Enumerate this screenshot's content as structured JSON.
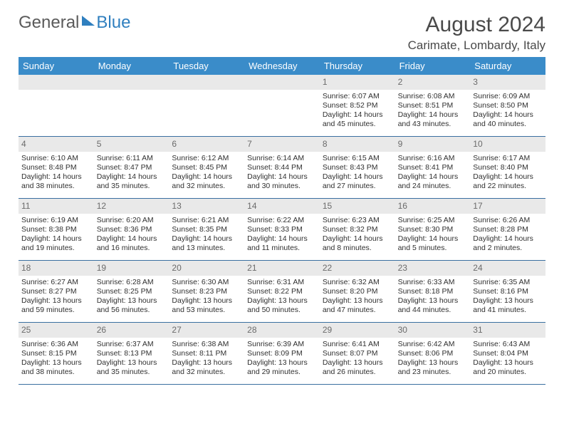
{
  "logo": {
    "word1": "General",
    "word2": "Blue"
  },
  "title": "August 2024",
  "location": "Carimate, Lombardy, Italy",
  "colors": {
    "header_bg": "#3a8cc9",
    "header_text": "#ffffff",
    "daynum_bg": "#e9e9e9",
    "rule": "#3a6fa0",
    "text": "#303030"
  },
  "layout": {
    "columns": 7,
    "rows": 5,
    "first_weekday": "Sunday"
  },
  "dow": [
    "Sunday",
    "Monday",
    "Tuesday",
    "Wednesday",
    "Thursday",
    "Friday",
    "Saturday"
  ],
  "weeks": [
    [
      {
        "n": "",
        "sr": "",
        "ss": "",
        "dl": ""
      },
      {
        "n": "",
        "sr": "",
        "ss": "",
        "dl": ""
      },
      {
        "n": "",
        "sr": "",
        "ss": "",
        "dl": ""
      },
      {
        "n": "",
        "sr": "",
        "ss": "",
        "dl": ""
      },
      {
        "n": "1",
        "sr": "Sunrise: 6:07 AM",
        "ss": "Sunset: 8:52 PM",
        "dl": "Daylight: 14 hours and 45 minutes."
      },
      {
        "n": "2",
        "sr": "Sunrise: 6:08 AM",
        "ss": "Sunset: 8:51 PM",
        "dl": "Daylight: 14 hours and 43 minutes."
      },
      {
        "n": "3",
        "sr": "Sunrise: 6:09 AM",
        "ss": "Sunset: 8:50 PM",
        "dl": "Daylight: 14 hours and 40 minutes."
      }
    ],
    [
      {
        "n": "4",
        "sr": "Sunrise: 6:10 AM",
        "ss": "Sunset: 8:48 PM",
        "dl": "Daylight: 14 hours and 38 minutes."
      },
      {
        "n": "5",
        "sr": "Sunrise: 6:11 AM",
        "ss": "Sunset: 8:47 PM",
        "dl": "Daylight: 14 hours and 35 minutes."
      },
      {
        "n": "6",
        "sr": "Sunrise: 6:12 AM",
        "ss": "Sunset: 8:45 PM",
        "dl": "Daylight: 14 hours and 32 minutes."
      },
      {
        "n": "7",
        "sr": "Sunrise: 6:14 AM",
        "ss": "Sunset: 8:44 PM",
        "dl": "Daylight: 14 hours and 30 minutes."
      },
      {
        "n": "8",
        "sr": "Sunrise: 6:15 AM",
        "ss": "Sunset: 8:43 PM",
        "dl": "Daylight: 14 hours and 27 minutes."
      },
      {
        "n": "9",
        "sr": "Sunrise: 6:16 AM",
        "ss": "Sunset: 8:41 PM",
        "dl": "Daylight: 14 hours and 24 minutes."
      },
      {
        "n": "10",
        "sr": "Sunrise: 6:17 AM",
        "ss": "Sunset: 8:40 PM",
        "dl": "Daylight: 14 hours and 22 minutes."
      }
    ],
    [
      {
        "n": "11",
        "sr": "Sunrise: 6:19 AM",
        "ss": "Sunset: 8:38 PM",
        "dl": "Daylight: 14 hours and 19 minutes."
      },
      {
        "n": "12",
        "sr": "Sunrise: 6:20 AM",
        "ss": "Sunset: 8:36 PM",
        "dl": "Daylight: 14 hours and 16 minutes."
      },
      {
        "n": "13",
        "sr": "Sunrise: 6:21 AM",
        "ss": "Sunset: 8:35 PM",
        "dl": "Daylight: 14 hours and 13 minutes."
      },
      {
        "n": "14",
        "sr": "Sunrise: 6:22 AM",
        "ss": "Sunset: 8:33 PM",
        "dl": "Daylight: 14 hours and 11 minutes."
      },
      {
        "n": "15",
        "sr": "Sunrise: 6:23 AM",
        "ss": "Sunset: 8:32 PM",
        "dl": "Daylight: 14 hours and 8 minutes."
      },
      {
        "n": "16",
        "sr": "Sunrise: 6:25 AM",
        "ss": "Sunset: 8:30 PM",
        "dl": "Daylight: 14 hours and 5 minutes."
      },
      {
        "n": "17",
        "sr": "Sunrise: 6:26 AM",
        "ss": "Sunset: 8:28 PM",
        "dl": "Daylight: 14 hours and 2 minutes."
      }
    ],
    [
      {
        "n": "18",
        "sr": "Sunrise: 6:27 AM",
        "ss": "Sunset: 8:27 PM",
        "dl": "Daylight: 13 hours and 59 minutes."
      },
      {
        "n": "19",
        "sr": "Sunrise: 6:28 AM",
        "ss": "Sunset: 8:25 PM",
        "dl": "Daylight: 13 hours and 56 minutes."
      },
      {
        "n": "20",
        "sr": "Sunrise: 6:30 AM",
        "ss": "Sunset: 8:23 PM",
        "dl": "Daylight: 13 hours and 53 minutes."
      },
      {
        "n": "21",
        "sr": "Sunrise: 6:31 AM",
        "ss": "Sunset: 8:22 PM",
        "dl": "Daylight: 13 hours and 50 minutes."
      },
      {
        "n": "22",
        "sr": "Sunrise: 6:32 AM",
        "ss": "Sunset: 8:20 PM",
        "dl": "Daylight: 13 hours and 47 minutes."
      },
      {
        "n": "23",
        "sr": "Sunrise: 6:33 AM",
        "ss": "Sunset: 8:18 PM",
        "dl": "Daylight: 13 hours and 44 minutes."
      },
      {
        "n": "24",
        "sr": "Sunrise: 6:35 AM",
        "ss": "Sunset: 8:16 PM",
        "dl": "Daylight: 13 hours and 41 minutes."
      }
    ],
    [
      {
        "n": "25",
        "sr": "Sunrise: 6:36 AM",
        "ss": "Sunset: 8:15 PM",
        "dl": "Daylight: 13 hours and 38 minutes."
      },
      {
        "n": "26",
        "sr": "Sunrise: 6:37 AM",
        "ss": "Sunset: 8:13 PM",
        "dl": "Daylight: 13 hours and 35 minutes."
      },
      {
        "n": "27",
        "sr": "Sunrise: 6:38 AM",
        "ss": "Sunset: 8:11 PM",
        "dl": "Daylight: 13 hours and 32 minutes."
      },
      {
        "n": "28",
        "sr": "Sunrise: 6:39 AM",
        "ss": "Sunset: 8:09 PM",
        "dl": "Daylight: 13 hours and 29 minutes."
      },
      {
        "n": "29",
        "sr": "Sunrise: 6:41 AM",
        "ss": "Sunset: 8:07 PM",
        "dl": "Daylight: 13 hours and 26 minutes."
      },
      {
        "n": "30",
        "sr": "Sunrise: 6:42 AM",
        "ss": "Sunset: 8:06 PM",
        "dl": "Daylight: 13 hours and 23 minutes."
      },
      {
        "n": "31",
        "sr": "Sunrise: 6:43 AM",
        "ss": "Sunset: 8:04 PM",
        "dl": "Daylight: 13 hours and 20 minutes."
      }
    ]
  ]
}
